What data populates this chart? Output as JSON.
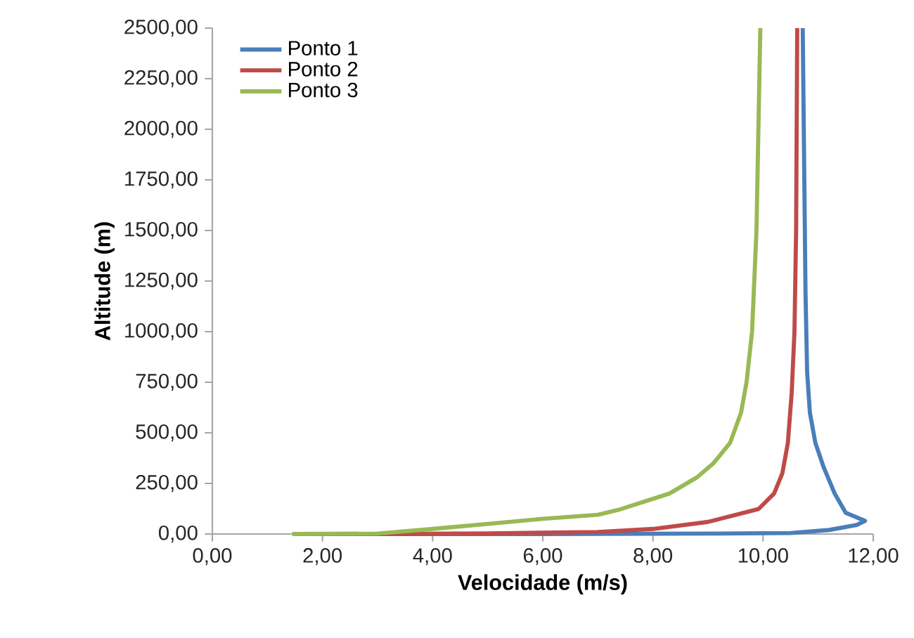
{
  "chart_data": {
    "type": "line",
    "xlabel": "Velocidade (m/s)",
    "ylabel": "Altitude (m)",
    "xlim": [
      0,
      12
    ],
    "ylim": [
      0,
      2500
    ],
    "xticks": [
      {
        "value": 0,
        "label": "0,00"
      },
      {
        "value": 2,
        "label": "2,00"
      },
      {
        "value": 4,
        "label": "4,00"
      },
      {
        "value": 6,
        "label": "6,00"
      },
      {
        "value": 8,
        "label": "8,00"
      },
      {
        "value": 10,
        "label": "10,00"
      },
      {
        "value": 12,
        "label": "12,00"
      }
    ],
    "yticks": [
      {
        "value": 0,
        "label": "0,00"
      },
      {
        "value": 250,
        "label": "250,00"
      },
      {
        "value": 500,
        "label": "500,00"
      },
      {
        "value": 750,
        "label": "750,00"
      },
      {
        "value": 1000,
        "label": "1000,00"
      },
      {
        "value": 1250,
        "label": "1250,00"
      },
      {
        "value": 1500,
        "label": "1500,00"
      },
      {
        "value": 1750,
        "label": "1750,00"
      },
      {
        "value": 2000,
        "label": "2000,00"
      },
      {
        "value": 2250,
        "label": "2250,00"
      },
      {
        "value": 2500,
        "label": "2500,00"
      }
    ],
    "grid": false,
    "legend": "top left",
    "marker": "none",
    "line_style": "solid",
    "series": [
      {
        "name": "Ponto 1",
        "color": "#4a7ebb",
        "x": [
          1.5,
          6,
          9,
          10.5,
          11.2,
          11.7,
          11.85,
          11.5,
          11.3,
          11.1,
          10.95,
          10.85,
          10.8,
          10.77,
          10.72
        ],
        "values": [
          0,
          0,
          2,
          5,
          20,
          45,
          65,
          105,
          200,
          330,
          450,
          600,
          800,
          1200,
          2500
        ]
      },
      {
        "name": "Ponto 2",
        "color": "#be4b48",
        "x": [
          3,
          5,
          7,
          8,
          9,
          9.92,
          10.2,
          10.35,
          10.45,
          10.52,
          10.57,
          10.6,
          10.62
        ],
        "values": [
          0,
          3,
          10,
          25,
          60,
          124,
          200,
          300,
          450,
          700,
          1000,
          1500,
          2500
        ]
      },
      {
        "name": "Ponto 3",
        "color": "#98b954",
        "x": [
          1.45,
          3,
          4,
          5,
          6,
          7,
          7.37,
          8.3,
          8.8,
          9.1,
          9.4,
          9.6,
          9.7,
          9.8,
          9.88,
          9.95
        ],
        "values": [
          0,
          2,
          25,
          50,
          75,
          95,
          119,
          200,
          280,
          350,
          450,
          600,
          750,
          1000,
          1500,
          2500
        ]
      }
    ]
  }
}
